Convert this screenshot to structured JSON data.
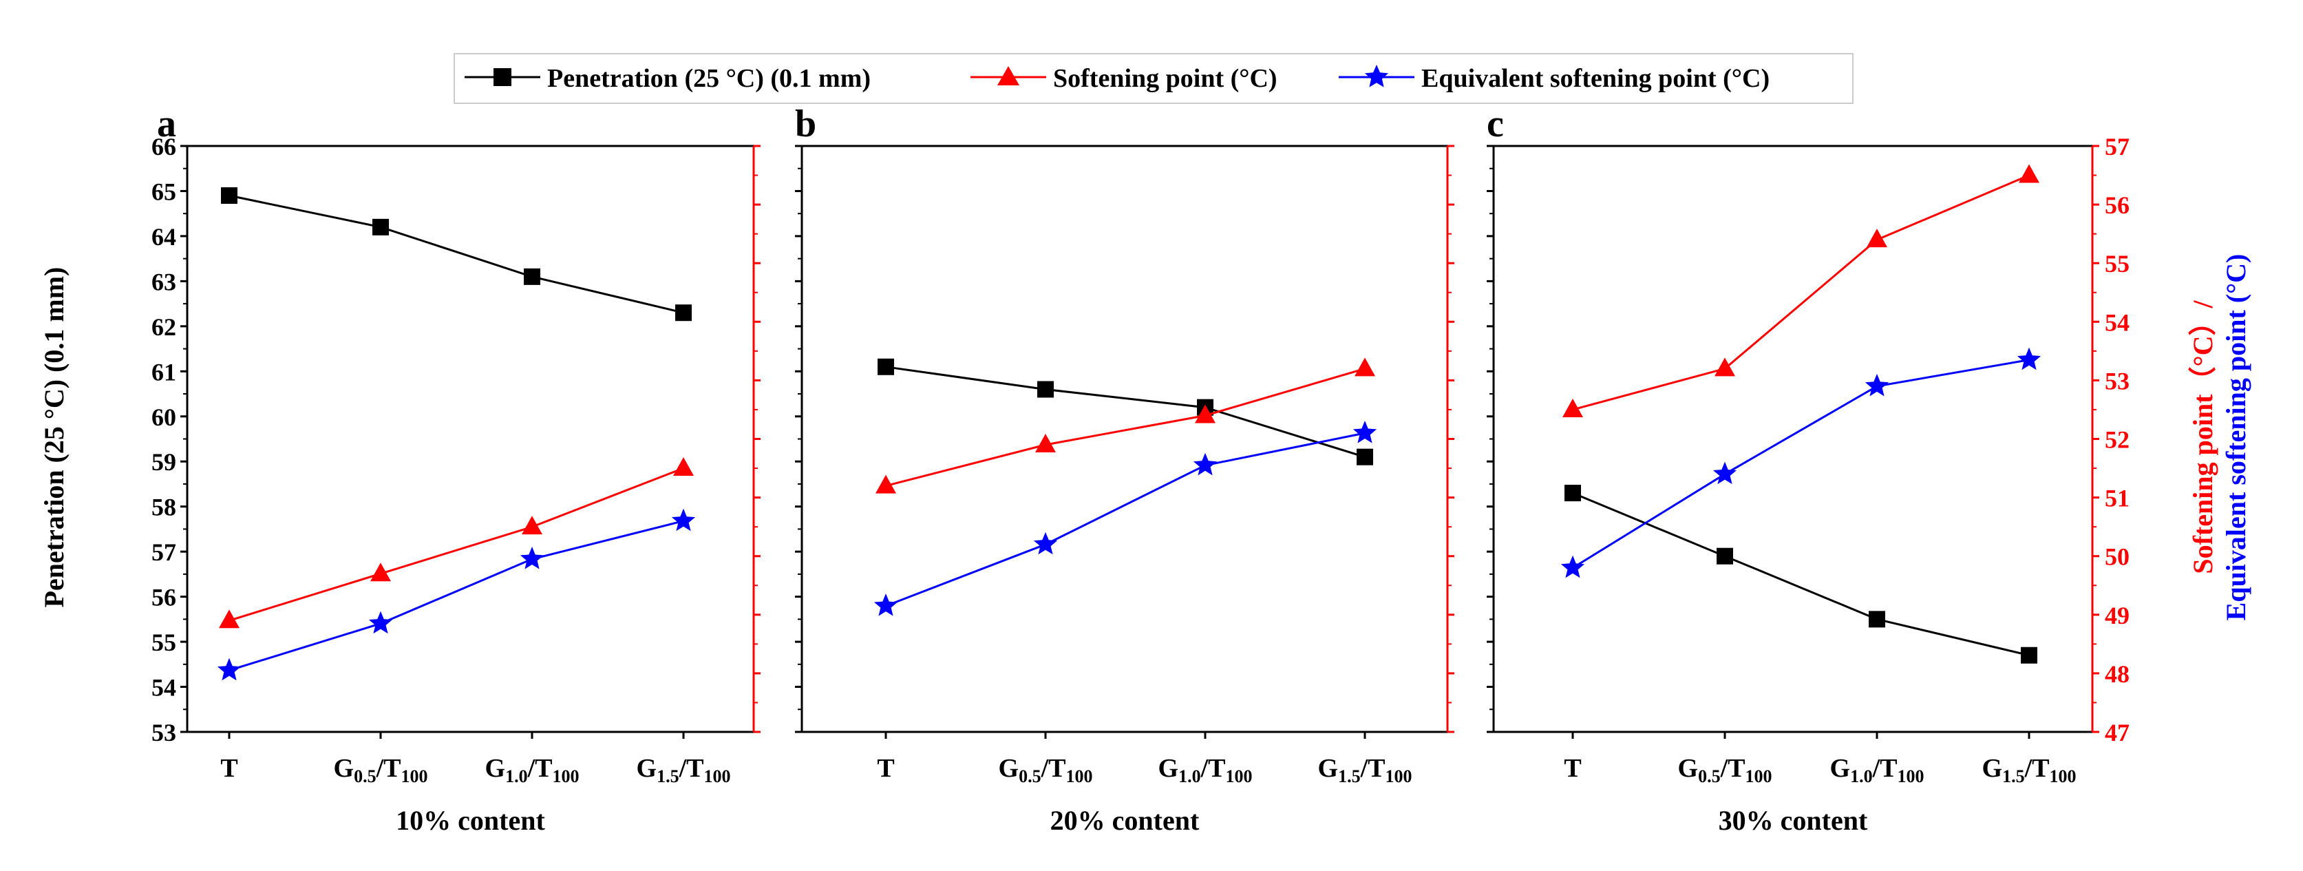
{
  "legend": {
    "items": [
      {
        "label": "Penetration (25 °C) (0.1 mm)",
        "color": "#000000",
        "marker": "square"
      },
      {
        "label": "Softening point (°C)",
        "color": "#ff0000",
        "marker": "triangle"
      },
      {
        "label": "Equivalent softening point (°C)",
        "color": "#0000ff",
        "marker": "star"
      }
    ]
  },
  "axes": {
    "left_label": "Penetration (25 °C) (0.1 mm)",
    "right_label_line1": "Softening point（°C）/",
    "right_label_line2": "Equivalent softening point (°C)"
  },
  "chart_data": [
    {
      "type": "line",
      "panel_label": "a",
      "xlabel": "10% content",
      "categories": [
        "T",
        "G0.5/T100",
        "G1.0/T100",
        "G1.5/T100"
      ],
      "left_ylim": [
        53,
        66
      ],
      "right_ylim": [
        47,
        57
      ],
      "left_ticks": [
        53,
        54,
        55,
        56,
        57,
        58,
        59,
        60,
        61,
        62,
        63,
        64,
        65,
        66
      ],
      "right_ticks": [],
      "series": [
        {
          "name": "Penetration (25 °C) (0.1 mm)",
          "axis": "left",
          "values": [
            64.9,
            64.2,
            63.1,
            62.3
          ]
        },
        {
          "name": "Softening point (°C)",
          "axis": "right",
          "values": [
            48.9,
            49.7,
            50.5,
            51.5
          ]
        },
        {
          "name": "Equivalent softening point (°C)",
          "axis": "right",
          "values": [
            48.05,
            48.85,
            49.95,
            50.6
          ]
        }
      ]
    },
    {
      "type": "line",
      "panel_label": "b",
      "xlabel": "20% content",
      "categories": [
        "T",
        "G0.5/T100",
        "G1.0/T100",
        "G1.5/T100"
      ],
      "left_ylim": [
        53,
        66
      ],
      "right_ylim": [
        47,
        57
      ],
      "left_ticks": [],
      "right_ticks": [],
      "series": [
        {
          "name": "Penetration (25 °C) (0.1 mm)",
          "axis": "left",
          "values": [
            61.1,
            60.6,
            60.2,
            59.1
          ]
        },
        {
          "name": "Softening point (°C)",
          "axis": "right",
          "values": [
            51.2,
            51.9,
            52.4,
            53.2
          ]
        },
        {
          "name": "Equivalent softening point (°C)",
          "axis": "right",
          "values": [
            49.15,
            50.2,
            51.55,
            52.1
          ]
        }
      ]
    },
    {
      "type": "line",
      "panel_label": "c",
      "xlabel": "30% content",
      "categories": [
        "T",
        "G0.5/T100",
        "G1.0/T100",
        "G1.5/T100"
      ],
      "left_ylim": [
        53,
        66
      ],
      "right_ylim": [
        47,
        57
      ],
      "left_ticks": [],
      "right_ticks": [
        47,
        48,
        49,
        50,
        51,
        52,
        53,
        54,
        55,
        56,
        57
      ],
      "series": [
        {
          "name": "Penetration (25 °C) (0.1 mm)",
          "axis": "left",
          "values": [
            58.3,
            56.9,
            55.5,
            54.7
          ]
        },
        {
          "name": "Softening point (°C)",
          "axis": "right",
          "values": [
            52.5,
            53.2,
            55.4,
            56.5
          ]
        },
        {
          "name": "Equivalent softening point (°C)",
          "axis": "right",
          "values": [
            49.8,
            51.4,
            52.9,
            53.35
          ]
        }
      ]
    }
  ]
}
